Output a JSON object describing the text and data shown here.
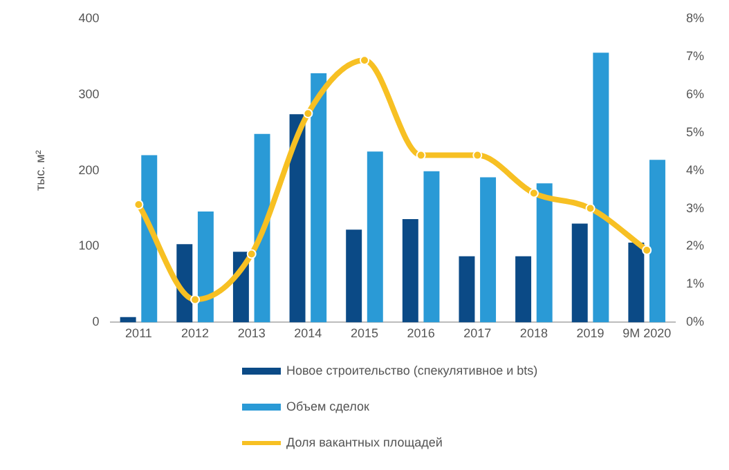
{
  "chart_data": {
    "type": "bar",
    "ylabel": "тыс. м²",
    "categories": [
      "2011",
      "2012",
      "2013",
      "2014",
      "2015",
      "2016",
      "2017",
      "2018",
      "2019",
      "9M 2020"
    ],
    "series": [
      {
        "name": "Новое строительство (спекулятивное и bts)",
        "color": "#0b4a86",
        "values": [
          7,
          103,
          93,
          274,
          122,
          136,
          87,
          87,
          130,
          105
        ]
      },
      {
        "name": "Объем сделок",
        "color": "#2a9ad6",
        "values": [
          220,
          146,
          248,
          328,
          225,
          199,
          191,
          183,
          355,
          214
        ]
      },
      {
        "name": "Доля вакантных площадей",
        "type": "line",
        "axis": "y2",
        "color": "#f7c023",
        "values": [
          3.1,
          0.6,
          1.8,
          5.5,
          6.9,
          4.4,
          4.4,
          3.4,
          3.0,
          1.9
        ]
      }
    ],
    "ylim": [
      0,
      400
    ],
    "yticks": [
      0,
      100,
      200,
      300,
      400
    ],
    "y2lim": [
      0,
      8
    ],
    "y2ticks": [
      {
        "value": 0,
        "label": "0%"
      },
      {
        "value": 1,
        "label": "1%"
      },
      {
        "value": 2,
        "label": "2%"
      },
      {
        "value": 3,
        "label": "3%"
      },
      {
        "value": 4,
        "label": "4%"
      },
      {
        "value": 5,
        "label": "5%"
      },
      {
        "value": 6,
        "label": "6%"
      },
      {
        "value": 7,
        "label": "7%"
      },
      {
        "value": 8,
        "label": "8%"
      }
    ],
    "grid": false,
    "legend": "bottom",
    "marker": "circle"
  }
}
